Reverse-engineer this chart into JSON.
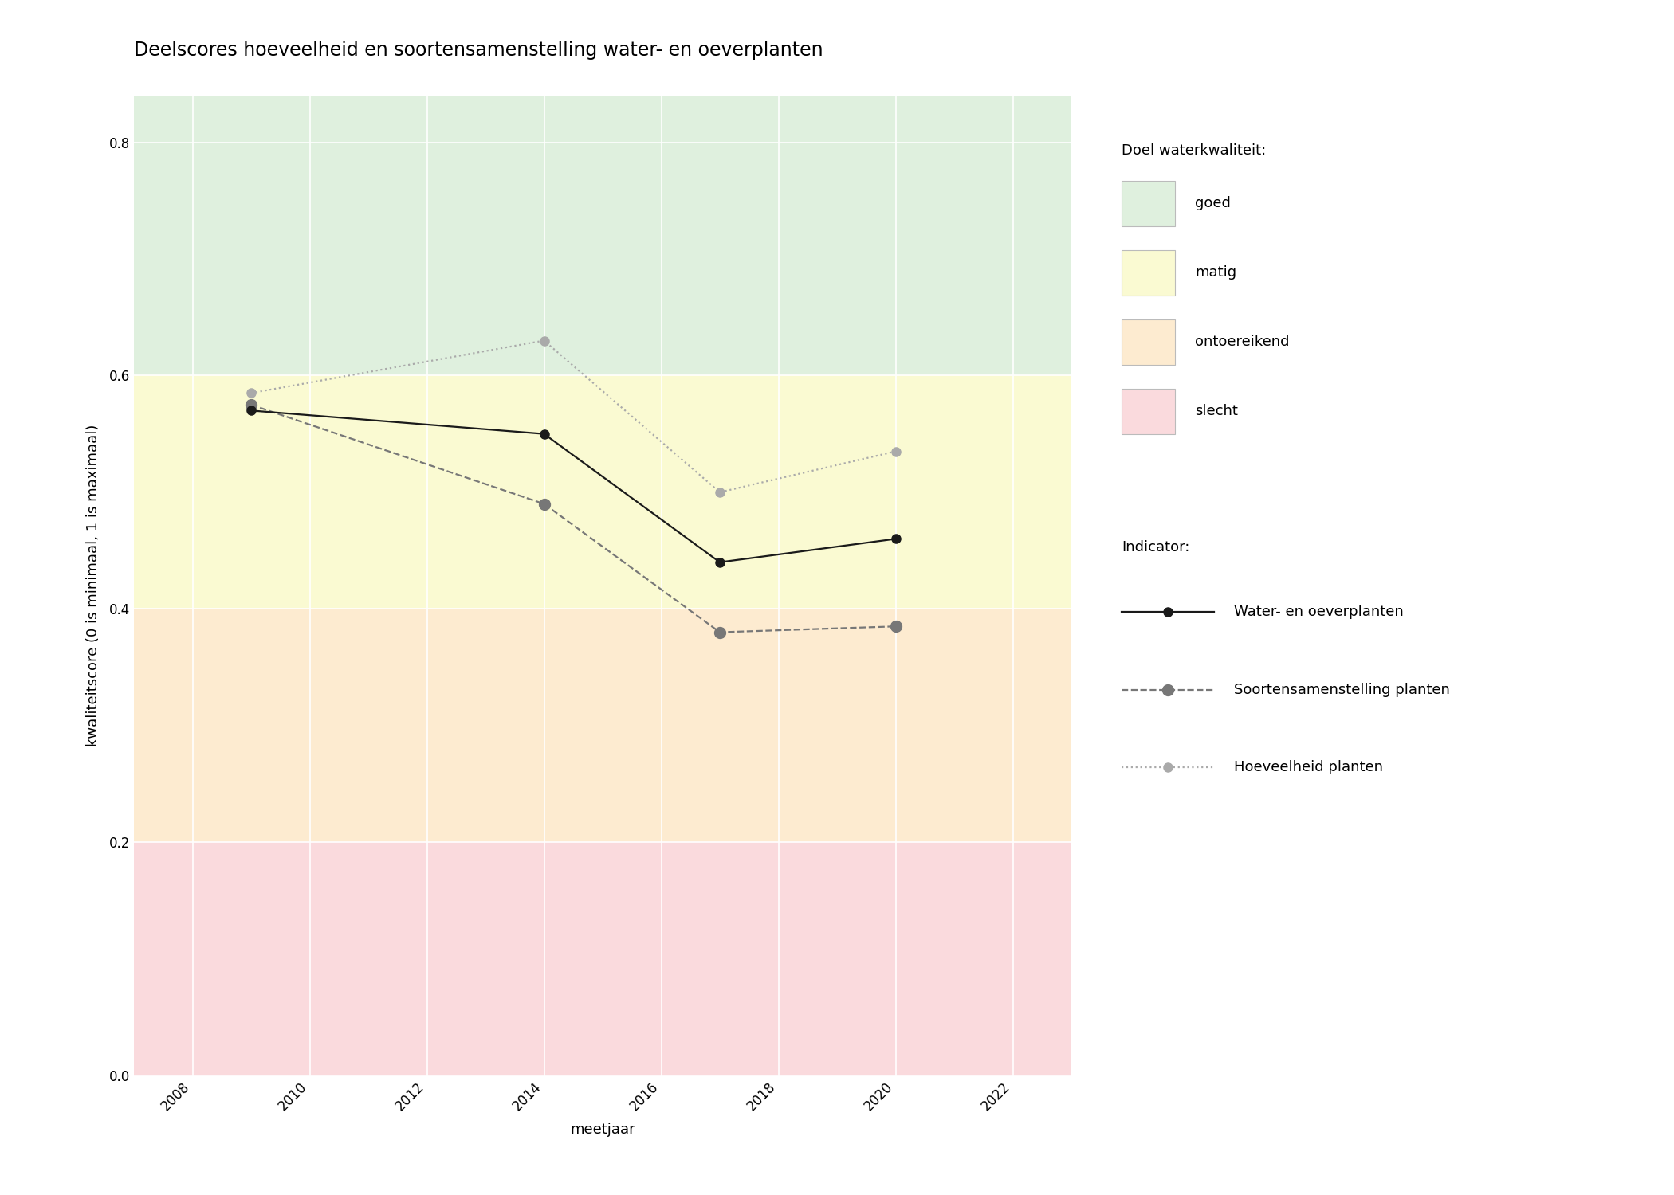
{
  "title": "Deelscores hoeveelheid en soortensamenstelling water- en oeverplanten",
  "xlabel": "meetjaar",
  "ylabel": "kwaliteitscore (0 is minimaal, 1 is maximaal)",
  "xlim": [
    2007,
    2023
  ],
  "ylim": [
    0.0,
    0.84
  ],
  "xticks": [
    2008,
    2010,
    2012,
    2014,
    2016,
    2018,
    2020,
    2022
  ],
  "yticks": [
    0.0,
    0.2,
    0.4,
    0.6,
    0.8
  ],
  "bg_bands": [
    {
      "ymin": 0.6,
      "ymax": 0.84,
      "color": "#dff0de"
    },
    {
      "ymin": 0.4,
      "ymax": 0.6,
      "color": "#fafad2"
    },
    {
      "ymin": 0.2,
      "ymax": 0.4,
      "color": "#fdebd0"
    },
    {
      "ymin": 0.0,
      "ymax": 0.2,
      "color": "#fadadd"
    }
  ],
  "line_water": {
    "x": [
      2009,
      2014,
      2017,
      2020
    ],
    "y": [
      0.57,
      0.55,
      0.44,
      0.46
    ],
    "color": "#1a1a1a",
    "linestyle": "-",
    "linewidth": 1.6,
    "marker": "o",
    "markersize": 8,
    "label": "Water- en oeverplanten"
  },
  "line_soorten": {
    "x": [
      2009,
      2014,
      2017,
      2020
    ],
    "y": [
      0.575,
      0.49,
      0.38,
      0.385
    ],
    "color": "#777777",
    "linestyle": "--",
    "linewidth": 1.6,
    "marker": "o",
    "markersize": 10,
    "label": "Soortensamenstelling planten"
  },
  "line_hoeveelheid": {
    "x": [
      2009,
      2014,
      2017,
      2020
    ],
    "y": [
      0.585,
      0.63,
      0.5,
      0.535
    ],
    "color": "#aaaaaa",
    "linestyle": ":",
    "linewidth": 1.6,
    "marker": "o",
    "markersize": 8,
    "label": "Hoeveelheid planten"
  },
  "legend_quality_title": "Doel waterkwaliteit:",
  "legend_quality_items": [
    {
      "label": "goed",
      "color": "#dff0de"
    },
    {
      "label": "matig",
      "color": "#fafad2"
    },
    {
      "label": "ontoereikend",
      "color": "#fdebd0"
    },
    {
      "label": "slecht",
      "color": "#fadadd"
    }
  ],
  "legend_indicator_title": "Indicator:",
  "background_color": "#ffffff",
  "title_fontsize": 17,
  "label_fontsize": 13,
  "tick_fontsize": 12,
  "legend_fontsize": 13
}
